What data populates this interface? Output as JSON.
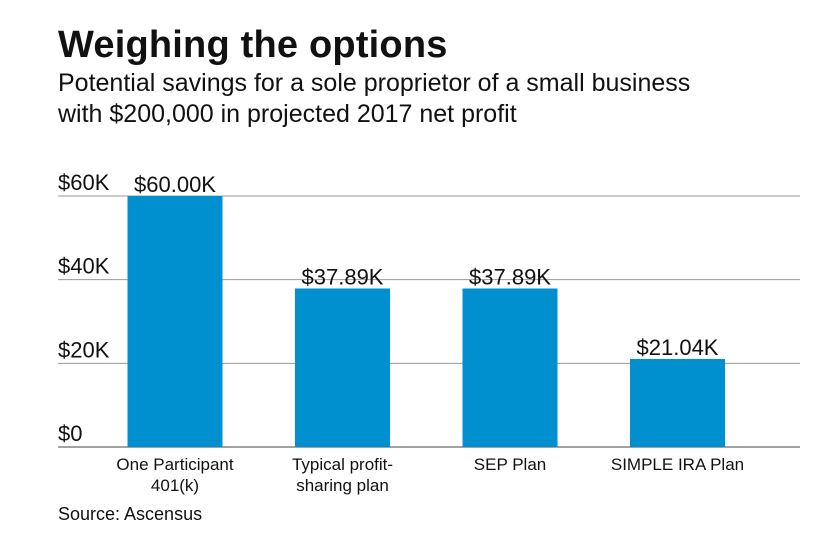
{
  "title": "Weighing the options",
  "subtitle_lines": [
    "Potential savings for a sole proprietor of a small business",
    "with $200,000 in projected 2017 net profit"
  ],
  "source": "Source: Ascensus",
  "colors": {
    "bar": "#0090d0",
    "grid": "#999999"
  },
  "chart_data": {
    "type": "bar",
    "title": "Weighing the options",
    "xlabel": "",
    "ylabel": "",
    "ylim": [
      0,
      60000
    ],
    "yticks": [
      0,
      20000,
      40000,
      60000
    ],
    "ytick_labels": [
      "$0",
      "$20K",
      "$40K",
      "$60K"
    ],
    "grid": true,
    "categories": [
      [
        "One Participant",
        "401(k)"
      ],
      [
        "Typical profit-",
        "sharing plan"
      ],
      [
        "SEP Plan"
      ],
      [
        "SIMPLE IRA Plan"
      ]
    ],
    "values": [
      60000,
      37890,
      37890,
      21040
    ],
    "data_labels": [
      "$60.00K",
      "$37.89K",
      "$37.89K",
      "$21.04K"
    ]
  }
}
